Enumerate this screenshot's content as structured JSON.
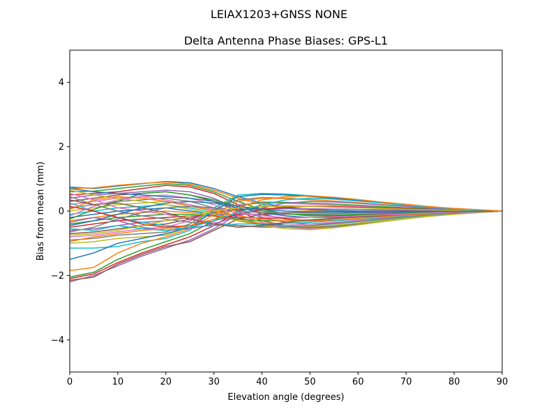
{
  "chart_data": {
    "type": "line",
    "suptitle": "LEIAX1203+GNSS  NONE",
    "title": "Delta Antenna Phase Biases: GPS-L1",
    "xlabel": "Elevation angle (degrees)",
    "ylabel": "Bias from mean (mm)",
    "xlim": [
      0,
      90
    ],
    "ylim": [
      -5,
      5
    ],
    "xticks": [
      0,
      10,
      20,
      30,
      40,
      50,
      60,
      70,
      80,
      90
    ],
    "yticks": [
      -4,
      -2,
      0,
      2,
      4
    ],
    "grid": false,
    "legend": "none",
    "x": [
      0,
      5,
      10,
      15,
      20,
      25,
      30,
      35,
      40,
      45,
      50,
      55,
      60,
      65,
      70,
      75,
      80,
      85,
      90
    ],
    "palette": [
      "#1f77b4",
      "#ff7f0e",
      "#2ca02c",
      "#d62728",
      "#9467bd",
      "#8c564b",
      "#e377c2",
      "#7f7f7f",
      "#bcbd22",
      "#17becf"
    ],
    "series": [
      {
        "values": [
          0.75,
          0.7,
          0.78,
          0.85,
          0.92,
          0.88,
          0.7,
          0.45,
          0.25,
          0.12,
          0.05,
          0.02,
          0.0,
          0.0,
          0.0,
          0.0,
          0.0,
          0.0,
          0.0
        ]
      },
      {
        "values": [
          0.7,
          0.72,
          0.8,
          0.86,
          0.9,
          0.84,
          0.65,
          0.4,
          0.2,
          0.08,
          0.02,
          -0.02,
          -0.03,
          -0.03,
          -0.03,
          -0.02,
          -0.01,
          -0.01,
          0.0
        ]
      },
      {
        "values": [
          0.6,
          0.62,
          0.7,
          0.78,
          0.85,
          0.8,
          0.6,
          0.3,
          0.05,
          -0.08,
          -0.15,
          -0.15,
          -0.13,
          -0.1,
          -0.08,
          -0.06,
          -0.04,
          -0.02,
          0.0
        ]
      },
      {
        "values": [
          0.5,
          0.55,
          0.6,
          0.7,
          0.8,
          0.75,
          0.55,
          0.2,
          -0.1,
          -0.25,
          -0.3,
          -0.28,
          -0.24,
          -0.19,
          -0.14,
          -0.1,
          -0.06,
          -0.03,
          0.0
        ]
      },
      {
        "values": [
          0.4,
          0.5,
          0.55,
          0.6,
          0.65,
          0.6,
          0.4,
          0.05,
          -0.2,
          -0.35,
          -0.4,
          -0.38,
          -0.32,
          -0.25,
          -0.18,
          -0.12,
          -0.07,
          -0.03,
          0.0
        ]
      },
      {
        "values": [
          0.3,
          0.4,
          0.5,
          0.55,
          0.6,
          0.5,
          0.3,
          0.0,
          -0.3,
          -0.45,
          -0.5,
          -0.46,
          -0.38,
          -0.3,
          -0.22,
          -0.15,
          -0.09,
          -0.04,
          0.0
        ]
      },
      {
        "values": [
          0.2,
          0.3,
          0.4,
          0.45,
          0.5,
          0.4,
          0.2,
          -0.1,
          -0.35,
          -0.5,
          -0.55,
          -0.5,
          -0.42,
          -0.33,
          -0.24,
          -0.16,
          -0.1,
          -0.05,
          0.0
        ]
      },
      {
        "values": [
          0.1,
          0.2,
          0.3,
          0.35,
          0.4,
          0.3,
          0.1,
          -0.2,
          -0.4,
          -0.5,
          -0.52,
          -0.48,
          -0.4,
          -0.31,
          -0.23,
          -0.15,
          -0.09,
          -0.04,
          0.0
        ]
      },
      {
        "values": [
          0.0,
          0.1,
          0.2,
          0.25,
          0.3,
          0.2,
          0.0,
          -0.25,
          -0.42,
          -0.48,
          -0.48,
          -0.44,
          -0.37,
          -0.29,
          -0.21,
          -0.14,
          -0.08,
          -0.04,
          0.0
        ]
      },
      {
        "values": [
          -0.1,
          0.0,
          0.1,
          0.15,
          0.2,
          0.1,
          -0.05,
          -0.3,
          -0.45,
          -0.48,
          -0.45,
          -0.4,
          -0.33,
          -0.26,
          -0.19,
          -0.12,
          -0.07,
          -0.03,
          0.0
        ]
      },
      {
        "values": [
          -0.2,
          -0.1,
          0.0,
          0.05,
          0.1,
          0.0,
          -0.1,
          -0.3,
          -0.42,
          -0.44,
          -0.4,
          -0.35,
          -0.29,
          -0.23,
          -0.17,
          -0.11,
          -0.06,
          -0.03,
          0.0
        ]
      },
      {
        "values": [
          -0.3,
          -0.2,
          -0.1,
          -0.05,
          0.0,
          -0.05,
          -0.15,
          -0.3,
          -0.38,
          -0.38,
          -0.34,
          -0.3,
          -0.25,
          -0.19,
          -0.14,
          -0.09,
          -0.05,
          -0.02,
          0.0
        ]
      },
      {
        "values": [
          -0.4,
          -0.3,
          -0.2,
          -0.15,
          -0.1,
          -0.1,
          -0.15,
          -0.25,
          -0.3,
          -0.3,
          -0.27,
          -0.23,
          -0.19,
          -0.15,
          -0.11,
          -0.07,
          -0.04,
          -0.02,
          0.0
        ]
      },
      {
        "values": [
          -0.5,
          -0.4,
          -0.3,
          -0.25,
          -0.2,
          -0.15,
          -0.15,
          -0.2,
          -0.22,
          -0.22,
          -0.2,
          -0.17,
          -0.14,
          -0.11,
          -0.08,
          -0.05,
          -0.03,
          -0.01,
          0.0
        ]
      },
      {
        "values": [
          -0.6,
          -0.55,
          -0.45,
          -0.35,
          -0.3,
          -0.2,
          -0.1,
          -0.1,
          -0.1,
          -0.1,
          -0.09,
          -0.08,
          -0.06,
          -0.05,
          -0.04,
          -0.03,
          -0.02,
          -0.01,
          0.0
        ]
      },
      {
        "values": [
          -0.7,
          -0.65,
          -0.55,
          -0.45,
          -0.4,
          -0.25,
          -0.05,
          0.05,
          0.08,
          0.08,
          0.07,
          0.06,
          0.05,
          0.04,
          0.03,
          0.02,
          0.01,
          0.0,
          0.0
        ]
      },
      {
        "values": [
          -0.8,
          -0.75,
          -0.65,
          -0.55,
          -0.5,
          -0.3,
          0.0,
          0.2,
          0.25,
          0.24,
          0.21,
          0.18,
          0.15,
          0.12,
          0.09,
          0.06,
          0.03,
          0.01,
          0.0
        ]
      },
      {
        "values": [
          -0.9,
          -0.85,
          -0.75,
          -0.7,
          -0.65,
          -0.4,
          0.05,
          0.35,
          0.42,
          0.4,
          0.36,
          0.31,
          0.26,
          0.2,
          0.15,
          0.1,
          0.06,
          0.03,
          0.0
        ]
      },
      {
        "values": [
          -1.0,
          -0.95,
          -0.85,
          -0.8,
          -0.75,
          -0.5,
          0.1,
          0.45,
          0.52,
          0.5,
          0.45,
          0.39,
          0.32,
          0.25,
          0.18,
          0.12,
          0.07,
          0.03,
          0.0
        ]
      },
      {
        "values": [
          -1.15,
          -1.15,
          -1.1,
          -0.95,
          -0.85,
          -0.6,
          0.1,
          0.5,
          0.55,
          0.53,
          0.48,
          0.42,
          0.35,
          0.27,
          0.2,
          0.13,
          0.08,
          0.04,
          0.0
        ]
      },
      {
        "values": [
          -1.5,
          -1.3,
          -1.0,
          -0.85,
          -0.7,
          -0.5,
          0.0,
          0.45,
          0.52,
          0.5,
          0.46,
          0.4,
          0.33,
          0.26,
          0.19,
          0.13,
          0.08,
          0.04,
          0.0
        ]
      },
      {
        "values": [
          -1.85,
          -1.75,
          -1.3,
          -1.0,
          -0.8,
          -0.55,
          -0.1,
          0.3,
          0.4,
          0.39,
          0.35,
          0.31,
          0.26,
          0.2,
          0.15,
          0.1,
          0.06,
          0.03,
          0.0
        ]
      },
      {
        "values": [
          -2.05,
          -1.9,
          -1.5,
          -1.2,
          -0.95,
          -0.7,
          -0.3,
          0.15,
          0.28,
          0.27,
          0.25,
          0.22,
          0.18,
          0.14,
          0.1,
          0.07,
          0.04,
          0.02,
          0.0
        ]
      },
      {
        "values": [
          -2.1,
          -1.95,
          -1.6,
          -1.3,
          -1.05,
          -0.8,
          -0.45,
          0.0,
          0.15,
          0.16,
          0.15,
          0.13,
          0.11,
          0.09,
          0.07,
          0.05,
          0.03,
          0.01,
          0.0
        ]
      },
      {
        "values": [
          -2.2,
          -2.0,
          -1.7,
          -1.4,
          -1.15,
          -0.9,
          -0.55,
          -0.1,
          0.05,
          0.07,
          0.07,
          0.06,
          0.05,
          0.04,
          0.03,
          0.02,
          0.01,
          0.0,
          0.0
        ]
      },
      {
        "values": [
          -2.15,
          -2.05,
          -1.65,
          -1.35,
          -1.1,
          -0.95,
          -0.6,
          -0.25,
          -0.1,
          -0.05,
          -0.03,
          -0.02,
          -0.02,
          -0.01,
          -0.01,
          -0.01,
          0.0,
          0.0,
          0.0
        ]
      },
      {
        "values": [
          0.55,
          0.35,
          0.1,
          0.0,
          -0.1,
          -0.25,
          -0.35,
          -0.45,
          -0.48,
          -0.45,
          -0.4,
          -0.35,
          -0.29,
          -0.23,
          -0.17,
          -0.11,
          -0.06,
          -0.03,
          0.0
        ]
      },
      {
        "values": [
          0.45,
          0.2,
          0.0,
          -0.15,
          -0.25,
          -0.35,
          -0.4,
          -0.45,
          -0.5,
          -0.5,
          -0.45,
          -0.39,
          -0.32,
          -0.25,
          -0.18,
          -0.12,
          -0.07,
          -0.03,
          0.0
        ]
      },
      {
        "values": [
          0.65,
          0.5,
          0.4,
          0.3,
          0.2,
          0.05,
          -0.1,
          -0.3,
          -0.45,
          -0.55,
          -0.58,
          -0.52,
          -0.43,
          -0.33,
          -0.24,
          -0.16,
          -0.1,
          -0.05,
          0.0
        ]
      },
      {
        "values": [
          0.25,
          0.0,
          -0.2,
          -0.35,
          -0.45,
          -0.5,
          -0.45,
          -0.4,
          -0.4,
          -0.38,
          -0.35,
          -0.3,
          -0.25,
          -0.2,
          -0.15,
          -0.1,
          -0.06,
          -0.03,
          0.0
        ]
      },
      {
        "values": [
          -0.45,
          -0.3,
          -0.1,
          0.1,
          0.25,
          0.3,
          0.25,
          0.1,
          -0.05,
          -0.15,
          -0.2,
          -0.2,
          -0.18,
          -0.15,
          -0.11,
          -0.08,
          -0.05,
          -0.02,
          0.0
        ]
      },
      {
        "values": [
          0.05,
          0.35,
          0.45,
          0.4,
          0.3,
          0.15,
          0.0,
          -0.15,
          -0.25,
          -0.3,
          -0.3,
          -0.27,
          -0.23,
          -0.18,
          -0.13,
          -0.09,
          -0.05,
          -0.02,
          0.0
        ]
      },
      {
        "values": [
          -0.25,
          0.05,
          0.3,
          0.55,
          0.6,
          0.5,
          0.35,
          0.15,
          0.0,
          -0.08,
          -0.12,
          -0.12,
          -0.1,
          -0.08,
          -0.06,
          -0.04,
          -0.02,
          -0.01,
          0.0
        ]
      },
      {
        "values": [
          0.15,
          0.0,
          -0.2,
          -0.4,
          -0.5,
          -0.45,
          -0.3,
          -0.1,
          0.05,
          0.12,
          0.15,
          0.14,
          0.12,
          0.1,
          0.07,
          0.05,
          0.03,
          0.01,
          0.0
        ]
      },
      {
        "values": [
          -0.35,
          -0.2,
          -0.3,
          -0.5,
          -0.6,
          -0.55,
          -0.4,
          -0.15,
          0.1,
          0.25,
          0.3,
          0.28,
          0.24,
          0.19,
          0.14,
          0.09,
          0.05,
          0.02,
          0.0
        ]
      },
      {
        "values": [
          0.35,
          0.2,
          0.25,
          0.1,
          -0.05,
          -0.25,
          -0.4,
          -0.5,
          -0.45,
          -0.35,
          -0.28,
          -0.23,
          -0.18,
          -0.14,
          -0.1,
          -0.07,
          -0.04,
          -0.02,
          0.0
        ]
      },
      {
        "values": [
          -0.15,
          0.15,
          0.35,
          0.45,
          0.35,
          0.2,
          0.05,
          -0.05,
          -0.15,
          -0.2,
          -0.2,
          -0.18,
          -0.15,
          -0.12,
          -0.09,
          -0.06,
          -0.03,
          -0.02,
          0.0
        ]
      },
      {
        "values": [
          -0.65,
          -0.5,
          -0.25,
          -0.05,
          0.1,
          0.15,
          0.1,
          0.0,
          -0.05,
          -0.05,
          -0.05,
          -0.04,
          -0.03,
          -0.03,
          -0.02,
          -0.01,
          -0.01,
          0.0,
          0.0
        ]
      },
      {
        "values": [
          -0.75,
          -0.7,
          -0.6,
          -0.45,
          -0.3,
          -0.15,
          0.0,
          0.1,
          0.15,
          0.15,
          0.14,
          0.12,
          0.1,
          0.08,
          0.06,
          0.04,
          0.02,
          0.01,
          0.0
        ]
      },
      {
        "values": [
          -0.55,
          -0.6,
          -0.45,
          -0.55,
          -0.6,
          -0.5,
          -0.3,
          -0.05,
          0.2,
          0.35,
          0.4,
          0.37,
          0.31,
          0.25,
          0.18,
          0.12,
          0.07,
          0.03,
          0.0
        ]
      },
      {
        "values": [
          0.7,
          0.6,
          0.55,
          0.5,
          0.45,
          0.4,
          0.3,
          0.15,
          0.05,
          0.0,
          -0.02,
          -0.03,
          -0.03,
          -0.02,
          -0.02,
          -0.01,
          -0.01,
          0.0,
          0.0
        ]
      },
      {
        "values": [
          -0.95,
          -0.8,
          -0.7,
          -0.6,
          -0.55,
          -0.45,
          -0.25,
          0.1,
          0.35,
          0.45,
          0.47,
          0.43,
          0.36,
          0.28,
          0.21,
          0.14,
          0.08,
          0.04,
          0.0
        ]
      }
    ]
  }
}
